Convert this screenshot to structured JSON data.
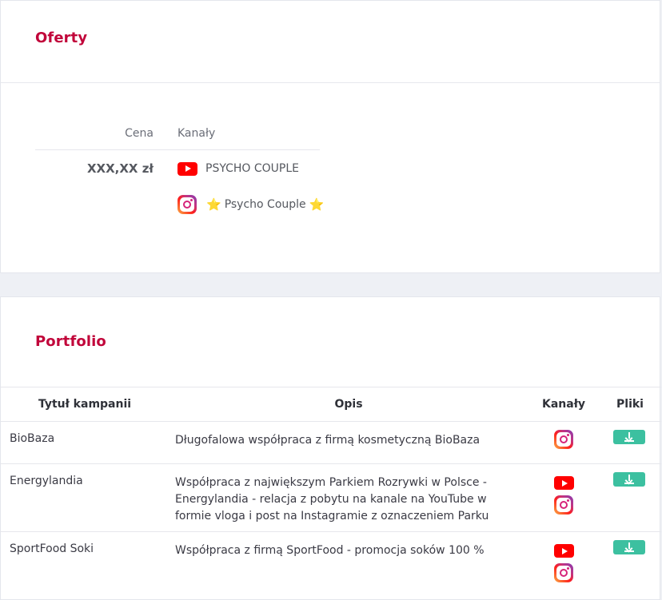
{
  "offers": {
    "title": "Oferty",
    "header": {
      "price": "Cena",
      "channels": "Kanały"
    },
    "price": "XXX,XX zł",
    "channels": [
      {
        "platform": "youtube",
        "icon": "youtube-icon",
        "name": "PSYCHO COUPLE"
      },
      {
        "platform": "instagram",
        "icon": "instagram-icon",
        "name": "Psycho Couple",
        "decoration": "⭐"
      }
    ]
  },
  "portfolio": {
    "title": "Portfolio",
    "columns": {
      "title": "Tytuł kampanii",
      "description": "Opis",
      "channels": "Kanały",
      "files": "Pliki"
    },
    "rows": [
      {
        "title": "BioBaza",
        "description": "Długofalowa współpraca z firmą kosmetyczną BioBaza",
        "channels": [
          "instagram"
        ]
      },
      {
        "title": "Energylandia",
        "description": "Współpraca z największym Parkiem Rozrywki w Polsce - Energylandia - relacja z pobytu na kanale na YouTube w formie vloga i post na Instagramie z oznaczeniem Parku",
        "channels": [
          "youtube",
          "instagram"
        ]
      },
      {
        "title": "SportFood Soki",
        "description": "Współpraca z firmą SportFood - promocja soków 100 %",
        "channels": [
          "youtube",
          "instagram"
        ]
      }
    ]
  },
  "colors": {
    "accent": "#c1053a",
    "download": "#3cc0a0",
    "youtube": "#ff0000",
    "background": "#eef0f5"
  }
}
